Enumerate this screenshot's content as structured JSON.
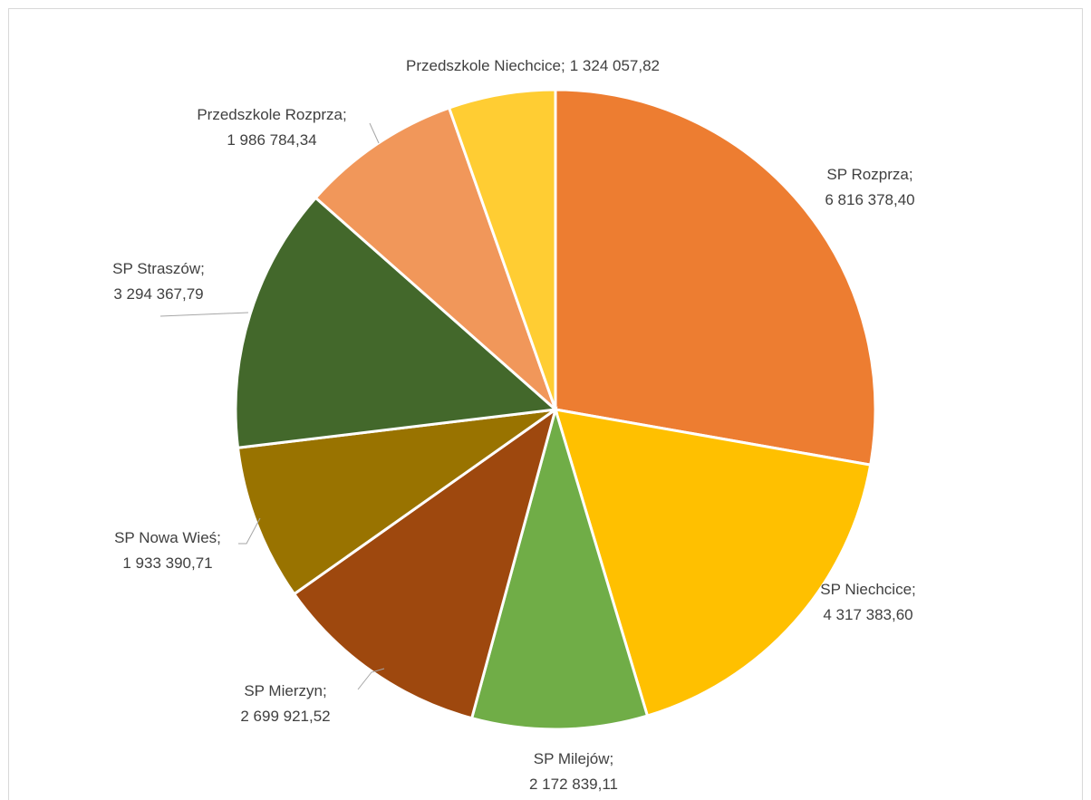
{
  "chart_data": {
    "type": "pie",
    "categories": [
      "SP Rozprza",
      "SP Niechcice",
      "SP Milejów",
      "SP Mierzyn",
      "SP Nowa Wieś",
      "SP Straszów",
      "Przedszkole Rozprza",
      "Przedszkole Niechcice"
    ],
    "values": [
      6816378.4,
      4317383.6,
      2172839.11,
      2699921.52,
      1933390.71,
      3294367.79,
      1986784.34,
      1324057.82
    ],
    "value_labels": [
      "6 816 378,40",
      "4 317 383,60",
      "2 172 839,11",
      "2 699 921,52",
      "1 933 390,71",
      "3 294 367,79",
      "1 986 784,34",
      "1 324 057,82"
    ],
    "label_separator": ";",
    "colors": [
      "#ed7d31",
      "#ffc000",
      "#70ad47",
      "#9e480e",
      "#997300",
      "#43682b",
      "#f1975a",
      "#ffcd33"
    ]
  }
}
